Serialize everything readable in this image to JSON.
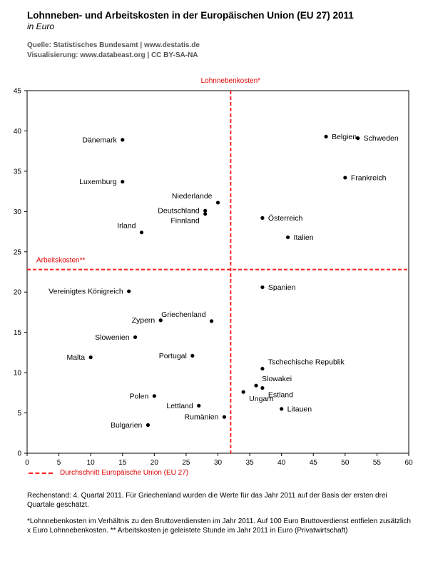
{
  "header": {
    "title": "Lohnneben- und Arbeitskosten in der Europäischen Union (EU 27) 2011",
    "subtitle": "in Euro",
    "source_line1": "Quelle: Statistisches Bundesamt | www.destatis.de",
    "source_line2": "Visualisierung: www.databeast.org | CC BY-SA-NA"
  },
  "legend": {
    "label": "Durchschnitt Europäische Union (EU 27)"
  },
  "footnotes": {
    "rechenstand": "Rechenstand: 4. Quartal 2011. Für Griechenland wurden die Werte für das Jahr 2011 auf der Basis der ersten drei Quartale geschätzt.",
    "definition": "*Lohnnebenkosten im Verhältnis zu den Bruttoverdiensten im Jahr 2011. Auf 100 Euro Bruttoverdienst entfielen zusätzlich x Euro Lohnnebenkosten. ** Arbeitskosten je geleistete Stunde im Jahr 2011 in Euro (Privatwirtschaft)"
  },
  "colors": {
    "reference": "#ff2020",
    "reference_text": "#e00000",
    "points": "#000000"
  },
  "chart_data": {
    "type": "scatter",
    "xlim": [
      0,
      60
    ],
    "ylim": [
      0,
      45
    ],
    "xticks": [
      0,
      5,
      10,
      15,
      20,
      25,
      30,
      35,
      40,
      45,
      50,
      55,
      60
    ],
    "yticks": [
      0,
      5,
      10,
      15,
      20,
      25,
      30,
      35,
      40,
      45
    ],
    "x_reference": {
      "label": "Lohnnebenkosten*",
      "value": 32
    },
    "y_reference": {
      "label": "Arbeitskosten**",
      "value": 22.8
    },
    "points": [
      {
        "label": "Dänemark",
        "x": 15,
        "y": 38.9,
        "anchor": "left"
      },
      {
        "label": "Luxemburg",
        "x": 15,
        "y": 33.7,
        "anchor": "left"
      },
      {
        "label": "Belgien",
        "x": 47,
        "y": 39.3,
        "anchor": "right"
      },
      {
        "label": "Schweden",
        "x": 52,
        "y": 39.1,
        "anchor": "right"
      },
      {
        "label": "Frankreich",
        "x": 50,
        "y": 34.2,
        "anchor": "right"
      },
      {
        "label": "Niederlande",
        "x": 30,
        "y": 31.1,
        "anchor": "left-up"
      },
      {
        "label": "Deutschland",
        "x": 28,
        "y": 30.1,
        "anchor": "left"
      },
      {
        "label": "Finnland",
        "x": 28,
        "y": 29.7,
        "anchor": "left-down"
      },
      {
        "label": "Österreich",
        "x": 37,
        "y": 29.2,
        "anchor": "right"
      },
      {
        "label": "Irland",
        "x": 18,
        "y": 27.4,
        "anchor": "left-up"
      },
      {
        "label": "Italien",
        "x": 41,
        "y": 26.8,
        "anchor": "right"
      },
      {
        "label": "Vereinigtes Königreich",
        "x": 16,
        "y": 20.1,
        "anchor": "left"
      },
      {
        "label": "Spanien",
        "x": 37,
        "y": 20.6,
        "anchor": "right"
      },
      {
        "label": "Zypern",
        "x": 21,
        "y": 16.5,
        "anchor": "left"
      },
      {
        "label": "Griechenland",
        "x": 29,
        "y": 16.4,
        "anchor": "left-up"
      },
      {
        "label": "Slowenien",
        "x": 17,
        "y": 14.4,
        "anchor": "left"
      },
      {
        "label": "Malta",
        "x": 10,
        "y": 11.9,
        "anchor": "left"
      },
      {
        "label": "Portugal",
        "x": 26,
        "y": 12.1,
        "anchor": "left"
      },
      {
        "label": "Tschechische Republik",
        "x": 37,
        "y": 10.5,
        "anchor": "right-up"
      },
      {
        "label": "Slowakei",
        "x": 36,
        "y": 8.4,
        "anchor": "right-up"
      },
      {
        "label": "Estland",
        "x": 37,
        "y": 8.1,
        "anchor": "right-down"
      },
      {
        "label": "Ungarn",
        "x": 34,
        "y": 7.6,
        "anchor": "right-down"
      },
      {
        "label": "Polen",
        "x": 20,
        "y": 7.1,
        "anchor": "left"
      },
      {
        "label": "Lettland",
        "x": 27,
        "y": 5.9,
        "anchor": "left"
      },
      {
        "label": "Litauen",
        "x": 40,
        "y": 5.5,
        "anchor": "right"
      },
      {
        "label": "Rumänien",
        "x": 31,
        "y": 4.5,
        "anchor": "left"
      },
      {
        "label": "Bulgarien",
        "x": 19,
        "y": 3.5,
        "anchor": "left"
      }
    ]
  }
}
